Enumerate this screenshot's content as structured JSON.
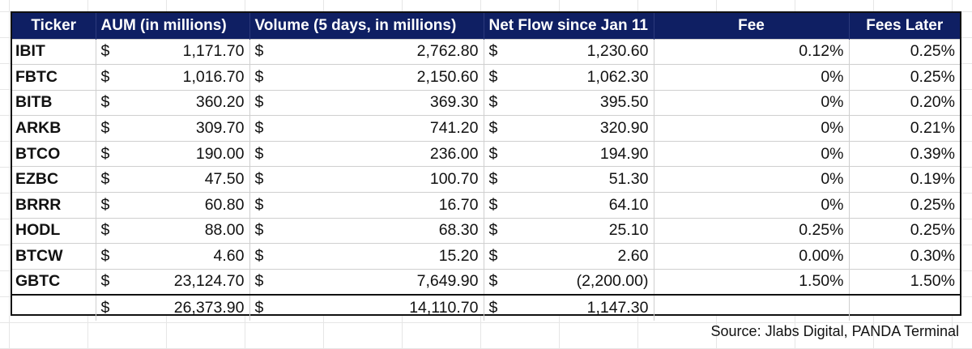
{
  "table": {
    "headers": {
      "ticker": "Ticker",
      "aum": "AUM (in millions)",
      "volume": "Volume (5 days, in millions)",
      "net_flow": "Net Flow since Jan 11",
      "fee": "Fee",
      "fees_later": "Fees Later"
    },
    "currency_symbol": "$",
    "rows": [
      {
        "ticker": "IBIT",
        "aum": "1,171.70",
        "volume": "2,762.80",
        "net_flow": "1,230.60",
        "fee": "0.12%",
        "fees_later": "0.25%"
      },
      {
        "ticker": "FBTC",
        "aum": "1,016.70",
        "volume": "2,150.60",
        "net_flow": "1,062.30",
        "fee": "0%",
        "fees_later": "0.25%"
      },
      {
        "ticker": "BITB",
        "aum": "360.20",
        "volume": "369.30",
        "net_flow": "395.50",
        "fee": "0%",
        "fees_later": "0.20%"
      },
      {
        "ticker": "ARKB",
        "aum": "309.70",
        "volume": "741.20",
        "net_flow": "320.90",
        "fee": "0%",
        "fees_later": "0.21%"
      },
      {
        "ticker": "BTCO",
        "aum": "190.00",
        "volume": "236.00",
        "net_flow": "194.90",
        "fee": "0%",
        "fees_later": "0.39%"
      },
      {
        "ticker": "EZBC",
        "aum": "47.50",
        "volume": "100.70",
        "net_flow": "51.30",
        "fee": "0%",
        "fees_later": "0.19%"
      },
      {
        "ticker": "BRRR",
        "aum": "60.80",
        "volume": "16.70",
        "net_flow": "64.10",
        "fee": "0%",
        "fees_later": "0.25%"
      },
      {
        "ticker": "HODL",
        "aum": "88.00",
        "volume": "68.30",
        "net_flow": "25.10",
        "fee": "0.25%",
        "fees_later": "0.25%"
      },
      {
        "ticker": "BTCW",
        "aum": "4.60",
        "volume": "15.20",
        "net_flow": "2.60",
        "fee": "0.00%",
        "fees_later": "0.30%"
      },
      {
        "ticker": "GBTC",
        "aum": "23,124.70",
        "volume": "7,649.90",
        "net_flow": "(2,200.00)",
        "fee": "1.50%",
        "fees_later": "1.50%"
      }
    ],
    "total": {
      "aum": "26,373.90",
      "volume": "14,110.70",
      "net_flow": "1,147.30"
    }
  },
  "source_note": "Source: Jlabs Digital, PANDA Terminal",
  "colors": {
    "header_bg": "#0f1f63",
    "header_text": "#ffffff"
  }
}
